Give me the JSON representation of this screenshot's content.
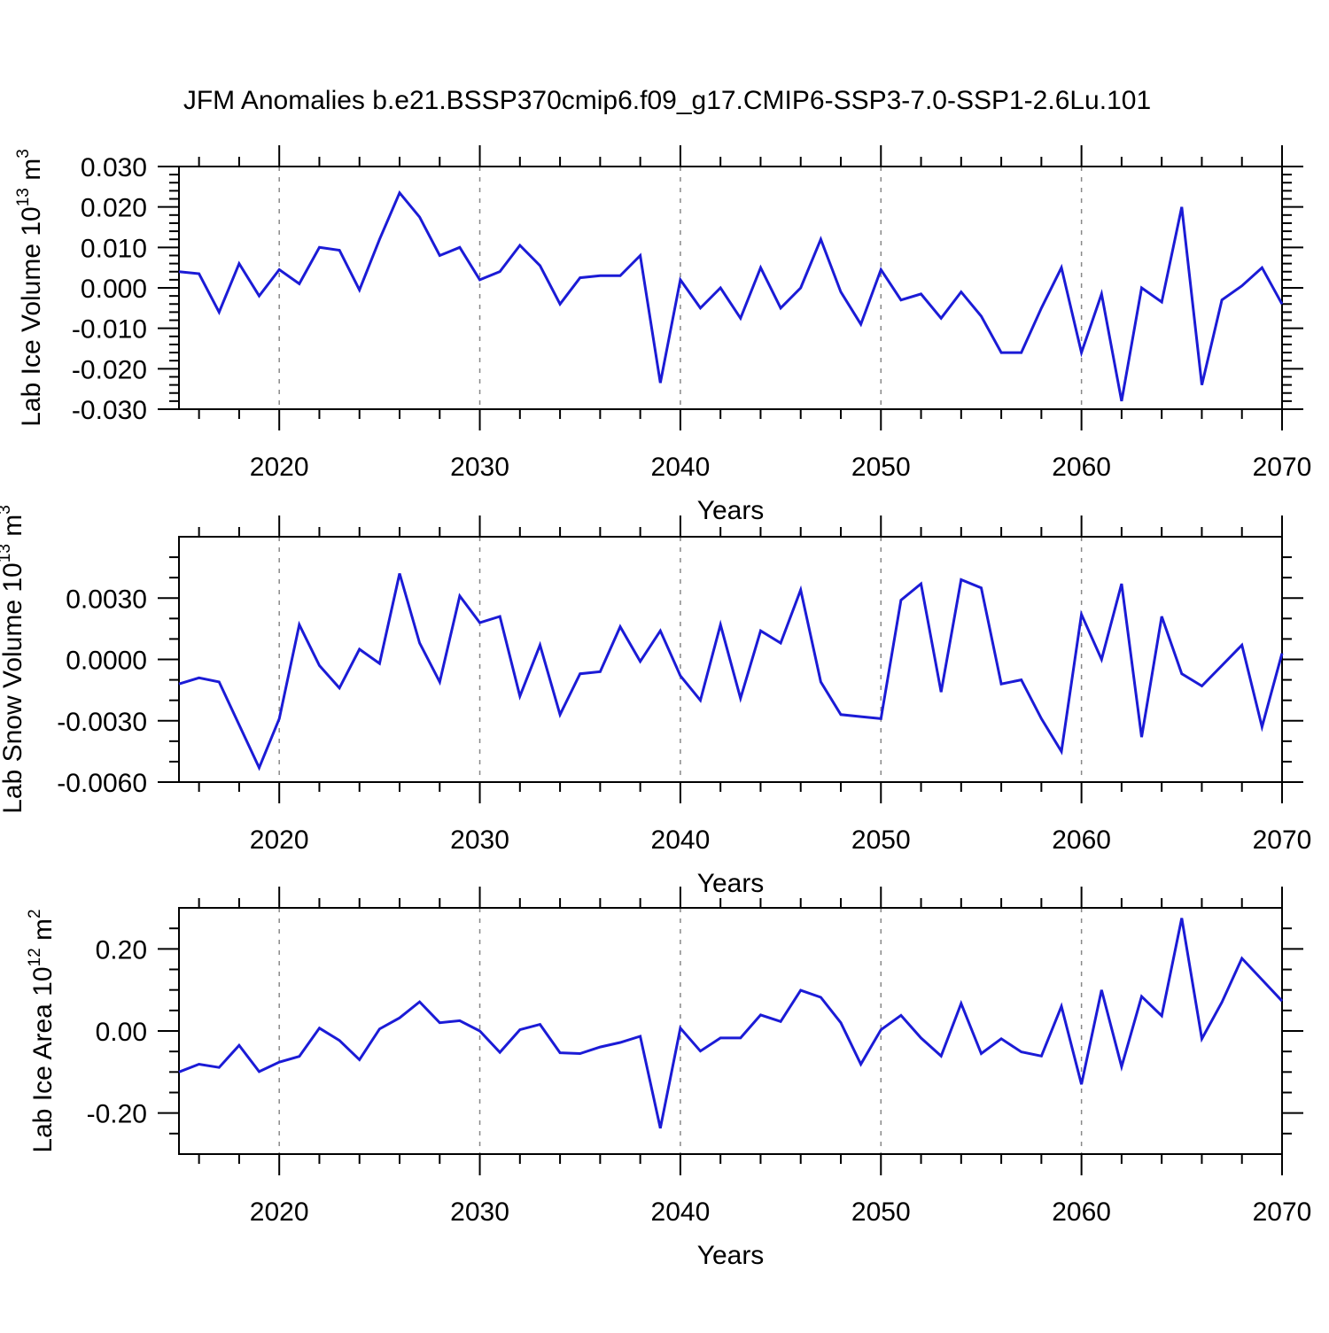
{
  "page": {
    "title": "JFM Anomalies b.e21.BSSP370cmip6.f09_g17.CMIP6-SSP3-7.0-SSP1-2.6Lu.101",
    "background": "#ffffff"
  },
  "colors": {
    "line": "#1b1bd6",
    "axis": "#000000",
    "gridline": "#888888",
    "text": "#000000"
  },
  "chart_data": [
    {
      "type": "line",
      "id": "lab-ice-volume",
      "ylabel_parts": [
        [
          "t",
          "Lab Ice Volume 10"
        ],
        [
          "s",
          "13"
        ],
        [
          "t",
          " m"
        ],
        [
          "s",
          "3"
        ]
      ],
      "xlabel": "Years",
      "xlim": [
        2015,
        2070
      ],
      "ylim": [
        -0.03,
        0.03
      ],
      "ytick_labels": [
        {
          "v": 0.03,
          "t": "0.030"
        },
        {
          "v": 0.02,
          "t": "0.020"
        },
        {
          "v": 0.01,
          "t": "0.010"
        },
        {
          "v": 0.0,
          "t": "0.000"
        },
        {
          "v": -0.01,
          "t": "-0.010"
        },
        {
          "v": -0.02,
          "t": "-0.020"
        },
        {
          "v": -0.03,
          "t": "-0.030"
        }
      ],
      "ytick_minor_step": 0.002,
      "ytick_major_step": 0.01,
      "xtick_labels": [
        2020,
        2030,
        2040,
        2050,
        2060,
        2070
      ],
      "xtick_minor_step": 2,
      "grid_x": [
        2020,
        2030,
        2040,
        2050,
        2060
      ],
      "x": [
        2015,
        2016,
        2017,
        2018,
        2019,
        2020,
        2021,
        2022,
        2023,
        2024,
        2025,
        2026,
        2027,
        2028,
        2029,
        2030,
        2031,
        2032,
        2033,
        2034,
        2035,
        2036,
        2037,
        2038,
        2039,
        2040,
        2041,
        2042,
        2043,
        2044,
        2045,
        2046,
        2047,
        2048,
        2049,
        2050,
        2051,
        2052,
        2053,
        2054,
        2055,
        2056,
        2057,
        2058,
        2059,
        2060,
        2061,
        2062,
        2063,
        2064,
        2065,
        2066,
        2067,
        2068,
        2069,
        2070
      ],
      "values": [
        0.004,
        0.0035,
        -0.006,
        0.006,
        -0.002,
        0.0045,
        0.001,
        0.01,
        0.0093,
        -0.0005,
        0.012,
        0.0235,
        0.0175,
        0.008,
        0.01,
        0.002,
        0.004,
        0.0105,
        0.0055,
        -0.004,
        0.0025,
        0.003,
        0.003,
        0.008,
        -0.0235,
        0.002,
        -0.005,
        0.0,
        -0.0075,
        0.005,
        -0.005,
        0.0,
        0.012,
        -0.001,
        -0.009,
        0.0045,
        -0.003,
        -0.0015,
        -0.0075,
        -0.001,
        -0.007,
        -0.016,
        -0.016,
        -0.005,
        0.005,
        -0.016,
        -0.0015,
        -0.028,
        0.0,
        -0.0035,
        0.02,
        -0.024,
        -0.003,
        0.0005,
        0.005,
        -0.004
      ]
    },
    {
      "type": "line",
      "id": "lab-snow-volume",
      "ylabel_parts": [
        [
          "t",
          "Lab Snow Volume 10"
        ],
        [
          "s",
          "13"
        ],
        [
          "t",
          " m"
        ],
        [
          "s",
          "3"
        ]
      ],
      "xlabel": "Years",
      "xlim": [
        2015,
        2070
      ],
      "ylim": [
        -0.006,
        0.006
      ],
      "ytick_labels": [
        {
          "v": 0.003,
          "t": "0.0030"
        },
        {
          "v": 0.0,
          "t": "0.0000"
        },
        {
          "v": -0.003,
          "t": "-0.0030"
        },
        {
          "v": -0.006,
          "t": "-0.0060"
        }
      ],
      "ytick_minor_step": 0.001,
      "ytick_major_step": 0.003,
      "xtick_labels": [
        2020,
        2030,
        2040,
        2050,
        2060,
        2070
      ],
      "xtick_minor_step": 2,
      "grid_x": [
        2020,
        2030,
        2040,
        2050,
        2060
      ],
      "x": [
        2015,
        2016,
        2017,
        2018,
        2019,
        2020,
        2021,
        2022,
        2023,
        2024,
        2025,
        2026,
        2027,
        2028,
        2029,
        2030,
        2031,
        2032,
        2033,
        2034,
        2035,
        2036,
        2037,
        2038,
        2039,
        2040,
        2041,
        2042,
        2043,
        2044,
        2045,
        2046,
        2047,
        2048,
        2049,
        2050,
        2051,
        2052,
        2053,
        2054,
        2055,
        2056,
        2057,
        2058,
        2059,
        2060,
        2061,
        2062,
        2063,
        2064,
        2065,
        2066,
        2067,
        2068,
        2069,
        2070
      ],
      "values": [
        -0.0012,
        -0.0009,
        -0.0011,
        -0.0032,
        -0.0053,
        -0.0029,
        0.0017,
        -0.0003,
        -0.0014,
        0.0005,
        -0.0002,
        0.0042,
        0.0008,
        -0.0011,
        0.0031,
        0.0018,
        0.0021,
        -0.0018,
        0.0007,
        -0.0027,
        -0.0007,
        -0.0006,
        0.0016,
        -0.0001,
        0.0014,
        -0.0008,
        -0.002,
        0.0017,
        -0.0019,
        0.0014,
        0.0008,
        0.0034,
        -0.0011,
        -0.0027,
        -0.0028,
        -0.0029,
        0.0029,
        0.0037,
        -0.0016,
        0.0039,
        0.0035,
        -0.0012,
        -0.001,
        -0.0029,
        -0.0045,
        0.0022,
        0.0,
        0.0037,
        -0.0038,
        0.0021,
        -0.0007,
        -0.0013,
        -0.0003,
        0.0007,
        -0.0033,
        0.0003
      ]
    },
    {
      "type": "line",
      "id": "lab-ice-area",
      "ylabel_parts": [
        [
          "t",
          "Lab Ice Area 10"
        ],
        [
          "s",
          "12"
        ],
        [
          "t",
          " m"
        ],
        [
          "s",
          "2"
        ]
      ],
      "xlabel": "Years",
      "xlim": [
        2015,
        2070
      ],
      "ylim": [
        -0.3,
        0.3
      ],
      "ytick_labels": [
        {
          "v": 0.2,
          "t": "0.20"
        },
        {
          "v": 0.0,
          "t": "0.00"
        },
        {
          "v": -0.2,
          "t": "-0.20"
        }
      ],
      "ytick_minor_step": 0.05,
      "ytick_major_step": 0.2,
      "xtick_labels": [
        2020,
        2030,
        2040,
        2050,
        2060,
        2070
      ],
      "xtick_minor_step": 2,
      "grid_x": [
        2020,
        2030,
        2040,
        2050,
        2060
      ],
      "x": [
        2015,
        2016,
        2017,
        2018,
        2019,
        2020,
        2021,
        2022,
        2023,
        2024,
        2025,
        2026,
        2027,
        2028,
        2029,
        2030,
        2031,
        2032,
        2033,
        2034,
        2035,
        2036,
        2037,
        2038,
        2039,
        2040,
        2041,
        2042,
        2043,
        2044,
        2045,
        2046,
        2047,
        2048,
        2049,
        2050,
        2051,
        2052,
        2053,
        2054,
        2055,
        2056,
        2057,
        2058,
        2059,
        2060,
        2061,
        2062,
        2063,
        2064,
        2065,
        2066,
        2067,
        2068,
        2069,
        2070
      ],
      "values": [
        -0.1,
        -0.081,
        -0.089,
        -0.035,
        -0.099,
        -0.076,
        -0.062,
        0.007,
        -0.023,
        -0.07,
        0.005,
        0.032,
        0.071,
        0.02,
        0.025,
        0.0,
        -0.052,
        0.003,
        0.016,
        -0.053,
        -0.055,
        -0.039,
        -0.028,
        -0.013,
        -0.237,
        0.007,
        -0.049,
        -0.017,
        -0.017,
        0.039,
        0.023,
        0.099,
        0.082,
        0.02,
        -0.081,
        0.003,
        0.038,
        -0.017,
        -0.061,
        0.067,
        -0.055,
        -0.019,
        -0.051,
        -0.061,
        0.06,
        -0.13,
        0.1,
        -0.087,
        0.084,
        0.037,
        0.275,
        -0.019,
        0.07,
        0.177,
        0.125,
        0.073
      ]
    }
  ]
}
